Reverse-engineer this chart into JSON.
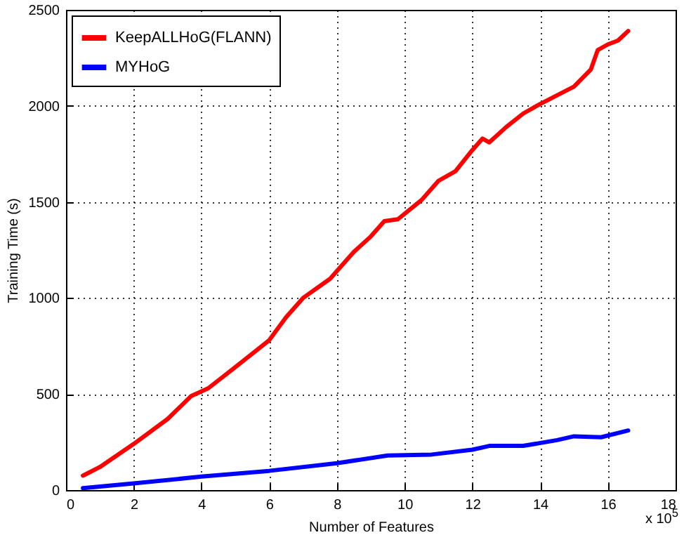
{
  "chart_data": {
    "type": "line",
    "xlabel": "Number of Features",
    "ylabel": "Training Time (s)",
    "xlim": [
      0,
      18
    ],
    "xticks": [
      0,
      2,
      4,
      6,
      8,
      10,
      12,
      14,
      16,
      18
    ],
    "ylim": [
      0,
      2500
    ],
    "yticks": [
      0,
      500,
      1000,
      1500,
      2000,
      2500
    ],
    "grid": true,
    "legend": "top left",
    "line_style": "solid",
    "annotations": [
      "x 10$^{5}$"
    ],
    "series": [
      {
        "name": "KeepALLHoG(FLANN)",
        "color": "#ff0000",
        "x": [
          0.5,
          1,
          2,
          3,
          3.7,
          4.2,
          5,
          6,
          6.5,
          7,
          7.8,
          8,
          8.5,
          9,
          9.4,
          9.8,
          10.5,
          11,
          11.5,
          12,
          12.3,
          12.5,
          13,
          13.5,
          14,
          15,
          15.5,
          15.7,
          16,
          16.3,
          16.6
        ],
        "values": [
          75,
          120,
          240,
          370,
          490,
          530,
          640,
          780,
          900,
          1000,
          1100,
          1140,
          1240,
          1320,
          1400,
          1410,
          1510,
          1610,
          1660,
          1770,
          1830,
          1810,
          1890,
          1960,
          2010,
          2100,
          2190,
          2290,
          2320,
          2340,
          2390
        ]
      },
      {
        "name": "MYHoG",
        "color": "#0000ff",
        "x": [
          0.5,
          2,
          4,
          6,
          8,
          9.5,
          10.8,
          12,
          12.5,
          13.5,
          14.5,
          15,
          15.8,
          16.6
        ],
        "values": [
          10,
          35,
          70,
          100,
          140,
          180,
          185,
          210,
          230,
          230,
          260,
          280,
          275,
          310
        ]
      }
    ]
  }
}
